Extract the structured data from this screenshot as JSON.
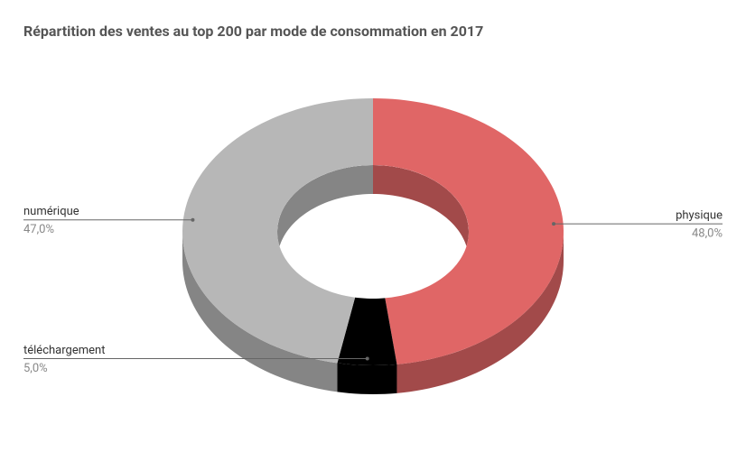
{
  "chart_data": {
    "type": "pie",
    "title": "Répartition des ventes au top 200 par mode de consommation en 2017",
    "categories": [
      "physique",
      "téléchargement",
      "numérique"
    ],
    "values": [
      48,
      5,
      47
    ],
    "value_labels": [
      "48,0%",
      "5,0%",
      "47,0%"
    ],
    "colors": [
      "#e06666",
      "#000000",
      "#b7b7b7"
    ],
    "side_colors": [
      "#a24a4a",
      "#000000",
      "#858585"
    ]
  }
}
